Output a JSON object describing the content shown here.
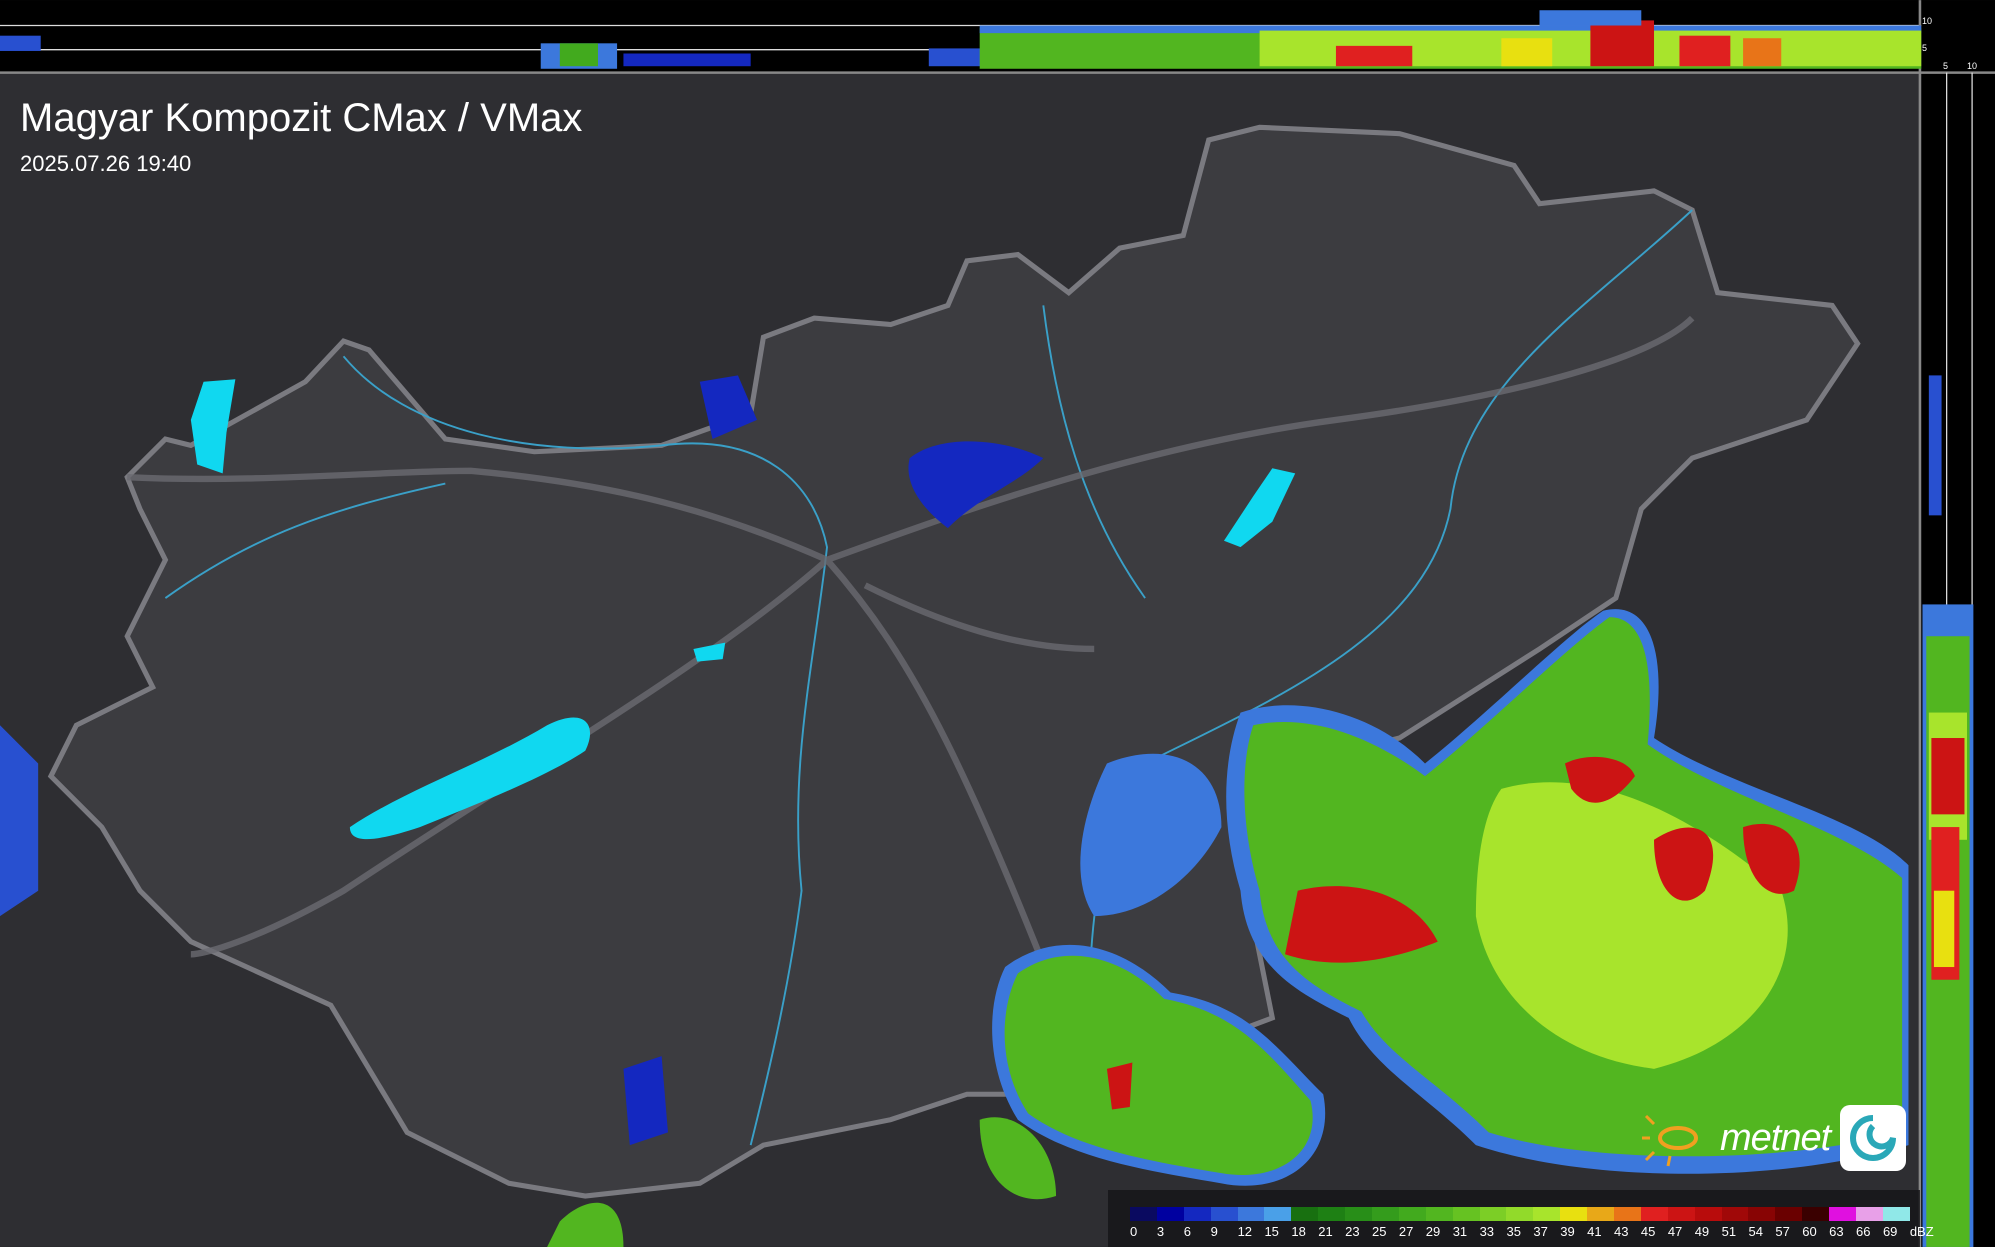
{
  "header": {
    "title": "Magyar Kompozit CMax / VMax",
    "timestamp": "2025.07.26 19:40"
  },
  "side_profiles": {
    "top_scale_ticks": [
      "10",
      "5"
    ],
    "right_scale_ticks": [
      "5",
      "10"
    ]
  },
  "legend": {
    "unit": "dBZ",
    "labels": [
      "0",
      "3",
      "6",
      "9",
      "12",
      "15",
      "18",
      "21",
      "23",
      "25",
      "27",
      "29",
      "31",
      "33",
      "35",
      "37",
      "39",
      "41",
      "43",
      "45",
      "47",
      "49",
      "51",
      "54",
      "57",
      "60",
      "63",
      "66",
      "69"
    ],
    "colors": [
      "#0a0a60",
      "#0000a0",
      "#1428c0",
      "#2850d0",
      "#3c78dc",
      "#4aa0e8",
      "#187010",
      "#1e8014",
      "#288e18",
      "#349c1c",
      "#42aa1e",
      "#52b620",
      "#66c222",
      "#7cce26",
      "#92da2a",
      "#a8e42c",
      "#e8e010",
      "#e8a818",
      "#e87418",
      "#e02020",
      "#cc1414",
      "#b80c0c",
      "#a00808",
      "#880404",
      "#6a0000",
      "#3a0000",
      "#e010e0",
      "#e8a0e8",
      "#90e8e8"
    ]
  },
  "brand": {
    "name": "metnet",
    "sun_color": "#f0a020",
    "icon_color": "#2aa8b8"
  },
  "map": {
    "background": "#2e2e32",
    "country_fill": "#3c3c40",
    "lake_color": "#10d8f0",
    "river_color": "#3aa0c8"
  }
}
